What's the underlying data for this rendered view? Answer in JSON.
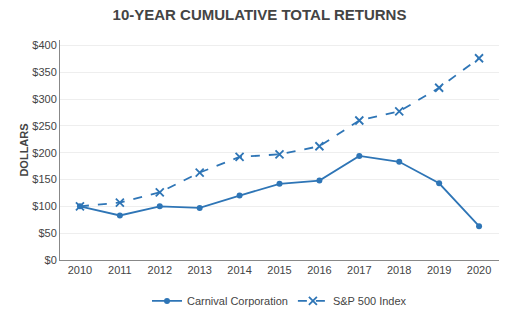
{
  "chart_data": {
    "type": "line",
    "title": "10-YEAR CUMULATIVE TOTAL RETURNS",
    "y_label": "DOLLARS",
    "x": [
      2010,
      2011,
      2012,
      2013,
      2014,
      2015,
      2016,
      2017,
      2018,
      2019,
      2020
    ],
    "series": [
      {
        "name": "Carnival Corporation",
        "color": "#2E75B6",
        "marker": "circle",
        "line_style": "solid",
        "values": [
          100,
          83,
          100,
          97,
          120,
          142,
          148,
          194,
          183,
          143,
          63
        ]
      },
      {
        "name": "S&P 500 Index",
        "color": "#2E75B6",
        "marker": "x",
        "line_style": "dash",
        "values": [
          100,
          107,
          126,
          163,
          192,
          197,
          212,
          260,
          277,
          321,
          376
        ]
      }
    ],
    "xlim": [
      2009.5,
      2020.5
    ],
    "xticks": [
      2010,
      2011,
      2012,
      2013,
      2014,
      2015,
      2016,
      2017,
      2018,
      2019,
      2020
    ],
    "ylim": [
      0,
      410
    ],
    "yticks": [
      {
        "value": 0,
        "label": "$0"
      },
      {
        "value": 50,
        "label": "$50"
      },
      {
        "value": 100,
        "label": "$100"
      },
      {
        "value": 150,
        "label": "$150"
      },
      {
        "value": 200,
        "label": "$200"
      },
      {
        "value": 250,
        "label": "$250"
      },
      {
        "value": 300,
        "label": "$300"
      },
      {
        "value": 350,
        "label": "$350"
      },
      {
        "value": 400,
        "label": "$400"
      }
    ],
    "grid": true,
    "legend": "bottom"
  }
}
